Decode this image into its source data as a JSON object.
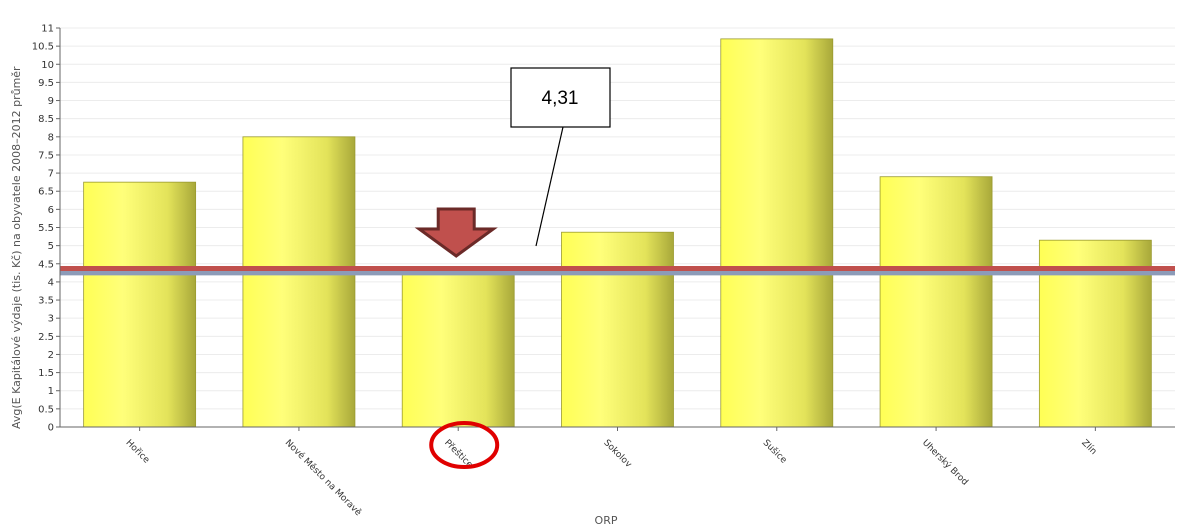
{
  "chart_data": {
    "type": "bar",
    "categories": [
      "Hořice",
      "Nové Město na Moravě",
      "Přeštice",
      "Sokolov",
      "Sušice",
      "Uherský Brod",
      "Zlín"
    ],
    "values": [
      6.75,
      8.0,
      4.31,
      5.37,
      10.7,
      6.9,
      5.15
    ],
    "title": "",
    "xlabel": "ORP",
    "ylabel": "Avg(E Kapitálové výdaje (tis. Kč) na obyvatele 2008–2012 průměr",
    "ylim": [
      0,
      11
    ],
    "yticks": [
      0,
      0.5,
      1,
      1.5,
      2,
      2.5,
      3,
      3.5,
      4,
      4.5,
      5,
      5.5,
      6,
      6.5,
      7,
      7.5,
      8,
      8.5,
      9,
      9.5,
      10,
      10.5,
      11
    ],
    "grid": true,
    "reference_lines": [
      {
        "value": 4.37,
        "color": "#c0504d"
      },
      {
        "value": 4.25,
        "color": "#8c9bb8"
      }
    ],
    "annotation": {
      "text": "4,31",
      "target_category": "Přeštice"
    },
    "highlight_category": "Přeštice",
    "colors": {
      "bar_light": "#ffff66",
      "bar_dark": "#b3b33a",
      "arrow": "#c0504d",
      "arrow_edge": "#6b2a28",
      "circle": "#e00000"
    }
  }
}
